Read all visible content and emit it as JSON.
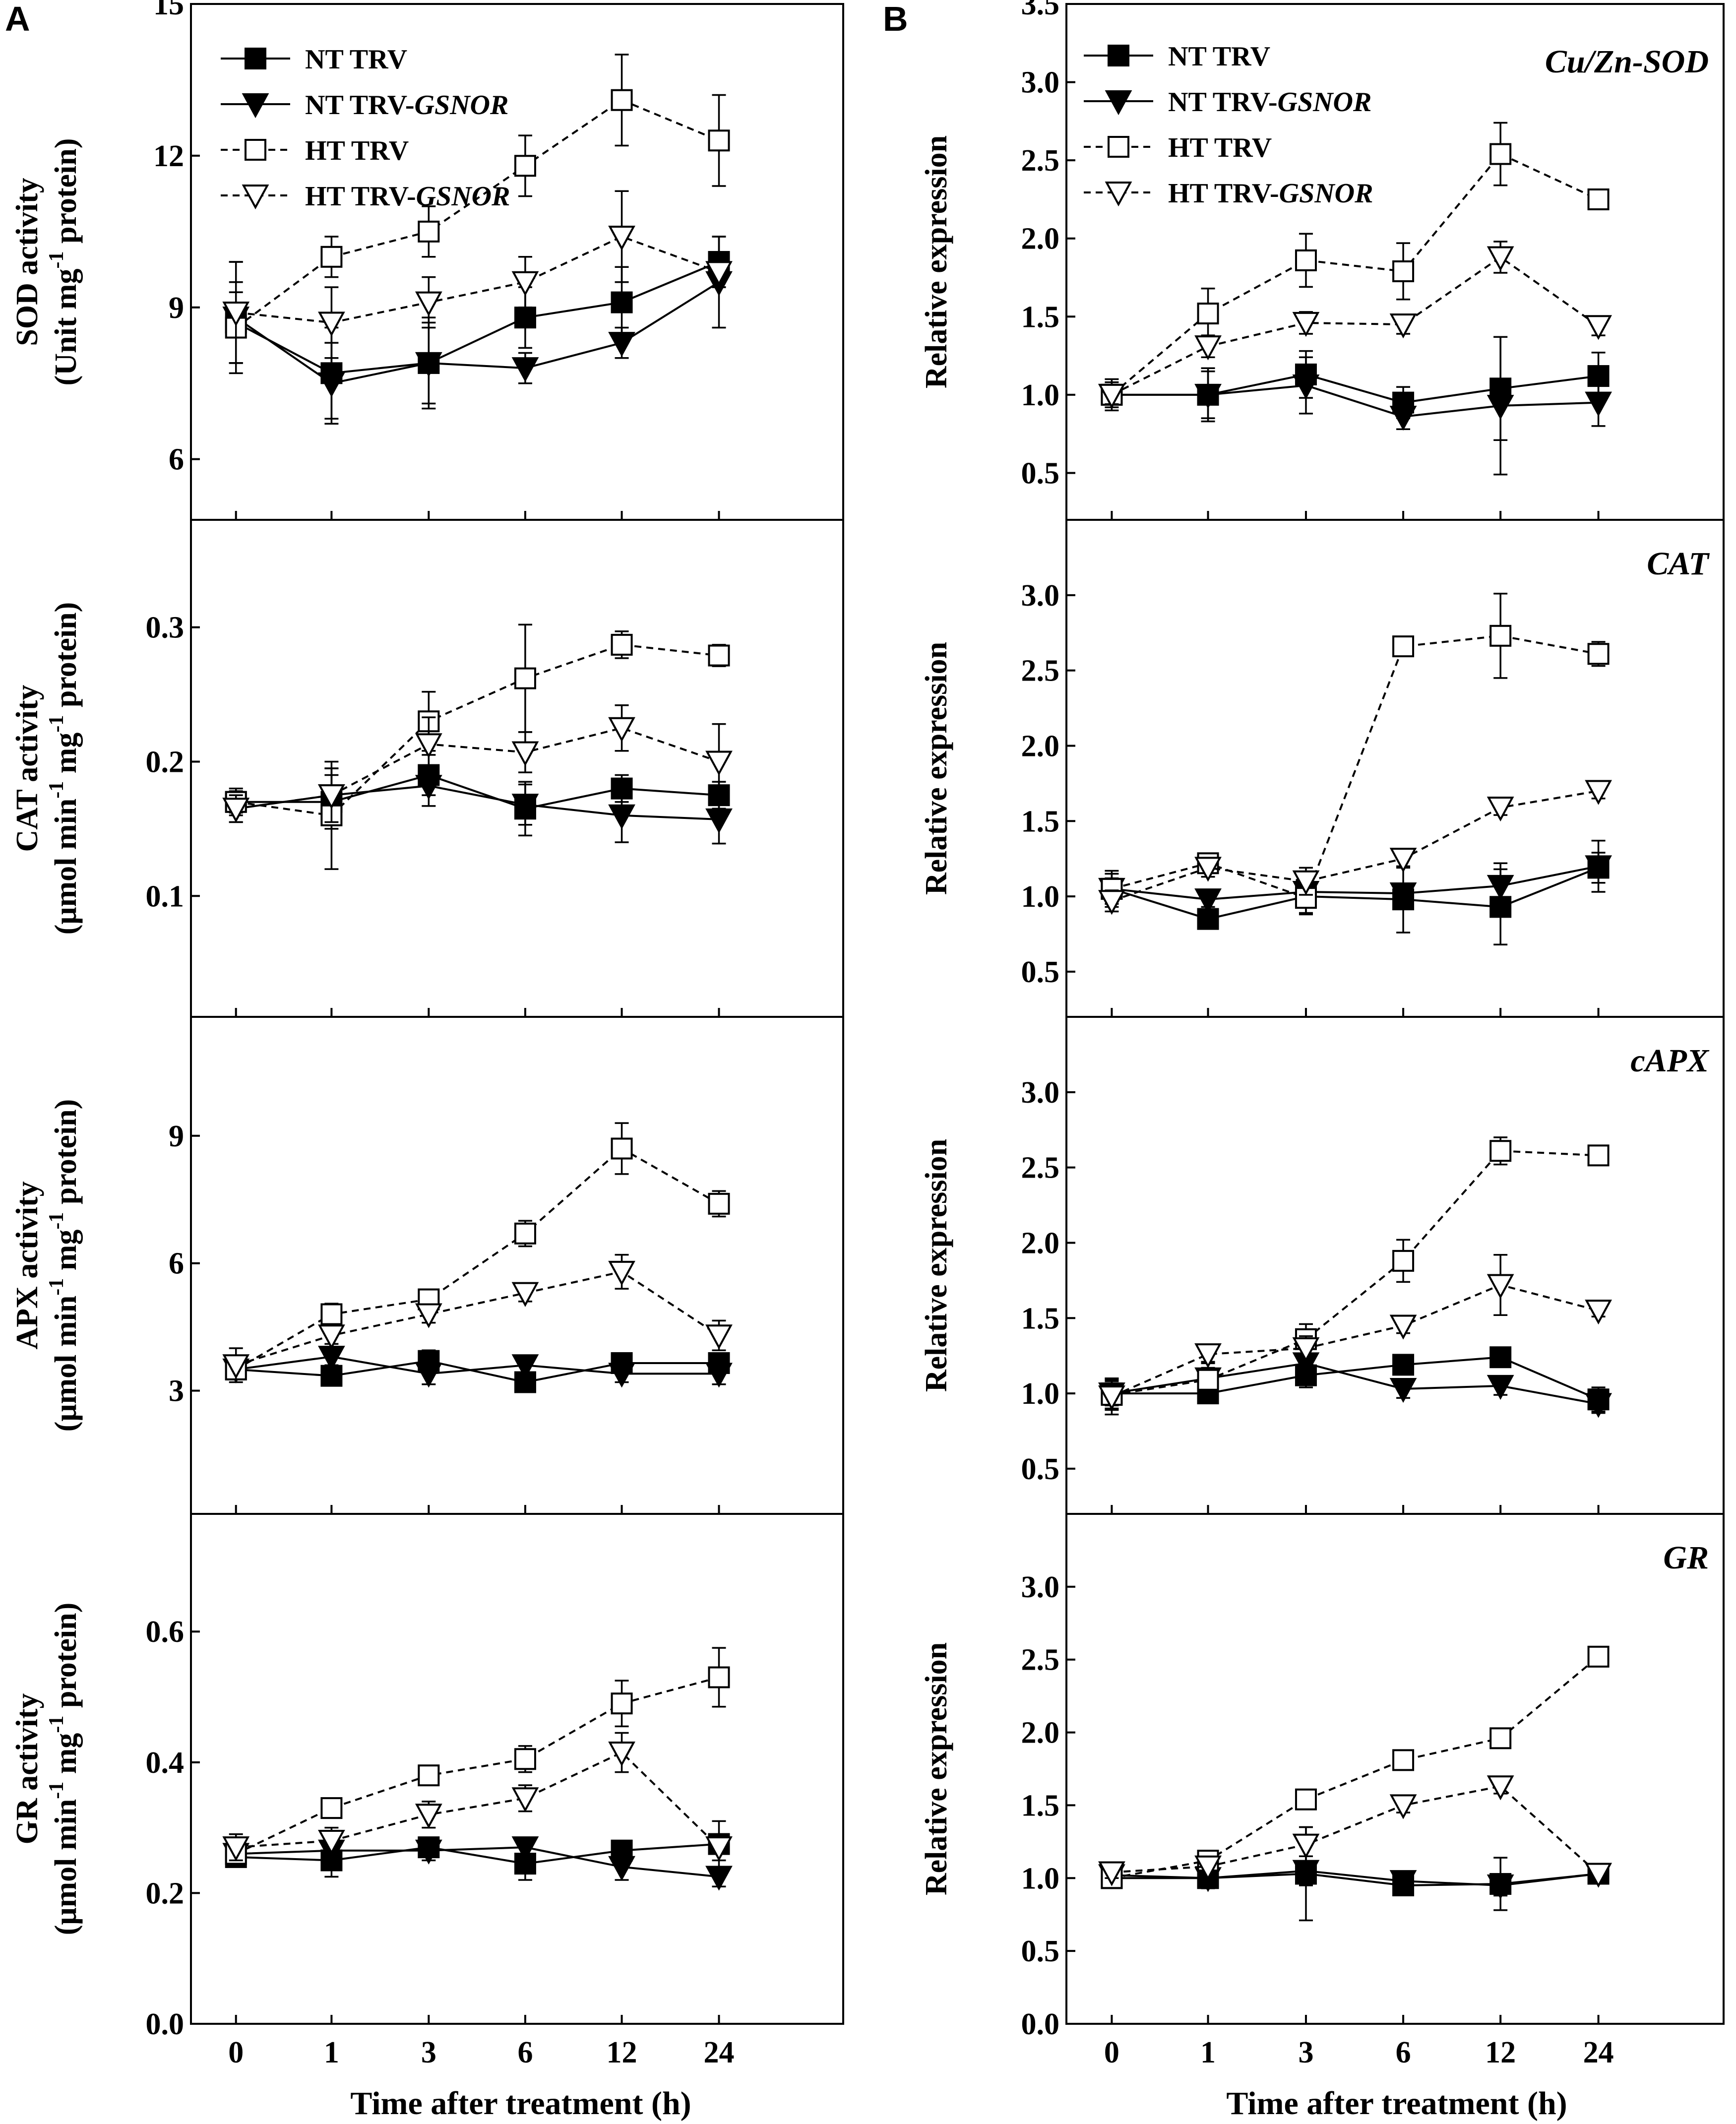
{
  "panel_labels": [
    "A",
    "B"
  ],
  "x_axis_label": "Time after treatment (h)",
  "legend_labels": {
    "nt_trv": "NT TRV",
    "nt_gsnor_prefix": "NT TRV-",
    "nt_gsnor_gene": "GSNOR",
    "ht_trv": "HT TRV",
    "ht_gsnor_prefix": "HT TRV-",
    "ht_gsnor_gene": "GSNOR"
  },
  "series_style": {
    "NT TRV": {
      "marker": "filled-square",
      "line": "solid"
    },
    "NT TRV-GSNOR": {
      "marker": "filled-triangle-down",
      "line": "solid"
    },
    "HT TRV": {
      "marker": "open-square",
      "line": "dashed"
    },
    "HT TRV-GSNOR": {
      "marker": "open-triangle-down",
      "line": "dashed"
    }
  },
  "chart_data": [
    {
      "id": "A1",
      "type": "line",
      "ylabel1_pre": "SOD activity",
      "ylabel2_pre": "(Unit mg",
      "ylabel2_sup": "-1",
      "ylabel2_post": " protein)",
      "ylim": [
        4.8,
        15
      ],
      "yticks": [
        6,
        9,
        12,
        15
      ],
      "categories": [
        "0",
        "1",
        "3",
        "6",
        "12",
        "24"
      ],
      "series": [
        {
          "name": "NT TRV",
          "values": [
            8.7,
            7.7,
            7.9,
            8.8,
            9.1,
            9.9
          ],
          "errors": [
            0.8,
            0.9,
            0.9,
            0.6,
            0.7,
            0.5
          ]
        },
        {
          "name": "NT TRV-GSNOR",
          "values": [
            8.8,
            7.5,
            7.9,
            7.8,
            8.3,
            9.5
          ],
          "errors": [
            1.1,
            0.8,
            0.8,
            0.3,
            0.3,
            0.9
          ]
        },
        {
          "name": "HT TRV",
          "values": [
            8.6,
            10.0,
            10.5,
            11.8,
            13.1,
            12.3
          ],
          "errors": [
            0.7,
            0.4,
            0.5,
            0.6,
            0.9,
            0.9
          ]
        },
        {
          "name": "HT TRV-GSNOR",
          "values": [
            8.9,
            8.7,
            9.1,
            9.5,
            10.4,
            9.7
          ],
          "errors": [
            1.0,
            0.7,
            0.5,
            0.5,
            0.9,
            0.3
          ]
        }
      ]
    },
    {
      "id": "A2",
      "type": "line",
      "ylabel1_pre": "CAT activity",
      "ylabel2_pre": "(μmol min",
      "ylabel2_sup": "-1",
      "ylabel2_mid": " mg",
      "ylabel2_sup2": "-1",
      "ylabel2_post": " protein)",
      "ylim": [
        0.01,
        0.38
      ],
      "yticks": [
        0.1,
        0.2,
        0.3
      ],
      "categories": [
        "0",
        "1",
        "3",
        "6",
        "12",
        "24"
      ],
      "series": [
        {
          "name": "NT TRV",
          "values": [
            0.17,
            0.17,
            0.19,
            0.165,
            0.18,
            0.175
          ],
          "errors": [
            0.01,
            0.02,
            0.015,
            0.02,
            0.01,
            0.01
          ]
        },
        {
          "name": "NT TRV-GSNOR",
          "values": [
            0.165,
            0.175,
            0.182,
            0.168,
            0.16,
            0.157
          ],
          "errors": [
            0.01,
            0.02,
            0.015,
            0.015,
            0.02,
            0.018
          ]
        },
        {
          "name": "HT TRV",
          "values": [
            0.17,
            0.16,
            0.23,
            0.262,
            0.287,
            0.279
          ],
          "errors": [
            0.008,
            0.04,
            0.022,
            0.04,
            0.01,
            0.008
          ]
        },
        {
          "name": "HT TRV-GSNOR",
          "values": [
            0.165,
            0.175,
            0.213,
            0.207,
            0.225,
            0.2
          ],
          "errors": [
            0.01,
            0.02,
            0.02,
            0.015,
            0.017,
            0.028
          ]
        }
      ]
    },
    {
      "id": "A3",
      "type": "line",
      "ylabel1_pre": "APX activity",
      "ylabel2_pre": "(μmol min",
      "ylabel2_sup": "-1",
      "ylabel2_mid": " mg",
      "ylabel2_sup2": "-1",
      "ylabel2_post": " protein)",
      "ylim": [
        0.1,
        11.8
      ],
      "yticks": [
        3,
        6,
        9
      ],
      "categories": [
        "0",
        "1",
        "3",
        "6",
        "12",
        "24"
      ],
      "series": [
        {
          "name": "NT TRV",
          "values": [
            3.5,
            3.35,
            3.7,
            3.2,
            3.65,
            3.65
          ],
          "errors": [
            0.2,
            0.15,
            0.25,
            0.2,
            0.2,
            0.2
          ]
        },
        {
          "name": "NT TRV-GSNOR",
          "values": [
            3.5,
            3.8,
            3.4,
            3.6,
            3.4,
            3.4
          ],
          "errors": [
            0.2,
            0.2,
            0.25,
            0.2,
            0.2,
            0.25
          ]
        },
        {
          "name": "HT TRV",
          "values": [
            3.5,
            4.8,
            5.15,
            6.7,
            8.7,
            7.4
          ],
          "errors": [
            0.2,
            0.25,
            0.2,
            0.3,
            0.6,
            0.3
          ]
        },
        {
          "name": "HT TRV-GSNOR",
          "values": [
            3.6,
            4.3,
            4.8,
            5.3,
            5.8,
            4.3
          ],
          "errors": [
            0.4,
            0.2,
            0.2,
            0.2,
            0.4,
            0.35
          ]
        }
      ]
    },
    {
      "id": "A4",
      "type": "line",
      "ylabel1_pre": "GR activity",
      "ylabel2_pre": "(μmol min",
      "ylabel2_sup": "-1",
      "ylabel2_mid": " mg",
      "ylabel2_sup2": "-1",
      "ylabel2_post": " protein)",
      "ylim": [
        0,
        0.78
      ],
      "yticks": [
        0.0,
        0.2,
        0.4,
        0.6
      ],
      "categories": [
        "0",
        "1",
        "3",
        "6",
        "12",
        "24"
      ],
      "series": [
        {
          "name": "NT TRV",
          "values": [
            0.255,
            0.25,
            0.27,
            0.245,
            0.265,
            0.275
          ],
          "errors": [
            0.015,
            0.025,
            0.015,
            0.025,
            0.015,
            0.035
          ]
        },
        {
          "name": "NT TRV-GSNOR",
          "values": [
            0.26,
            0.265,
            0.265,
            0.27,
            0.24,
            0.225
          ],
          "errors": [
            0.015,
            0.015,
            0.015,
            0.015,
            0.02,
            0.015
          ]
        },
        {
          "name": "HT TRV",
          "values": [
            0.26,
            0.33,
            0.38,
            0.405,
            0.49,
            0.53
          ],
          "errors": [
            0.02,
            0.01,
            0.015,
            0.02,
            0.035,
            0.045
          ]
        },
        {
          "name": "HT TRV-GSNOR",
          "values": [
            0.27,
            0.28,
            0.32,
            0.345,
            0.415,
            0.27
          ],
          "errors": [
            0.02,
            0.02,
            0.02,
            0.02,
            0.03,
            0.02
          ]
        }
      ]
    },
    {
      "id": "B1",
      "type": "line",
      "gene": "Cu/Zn-SOD",
      "ylabel1_pre": "Relative expression",
      "ylim": [
        0.2,
        3.5
      ],
      "yticks": [
        0.5,
        1.0,
        1.5,
        2.0,
        2.5,
        3.0,
        3.5
      ],
      "categories": [
        "0",
        "1",
        "3",
        "6",
        "12",
        "24"
      ],
      "series": [
        {
          "name": "NT TRV",
          "values": [
            1.0,
            1.0,
            1.13,
            0.95,
            1.04,
            1.12
          ],
          "errors": [
            0.1,
            0.17,
            0.15,
            0.1,
            0.33,
            0.15
          ]
        },
        {
          "name": "NT TRV-GSNOR",
          "values": [
            1.0,
            1.0,
            1.06,
            0.86,
            0.93,
            0.95
          ],
          "errors": [
            0.08,
            0.15,
            0.18,
            0.08,
            0.44,
            0.15
          ]
        },
        {
          "name": "HT TRV",
          "values": [
            1.0,
            1.52,
            1.86,
            1.79,
            2.54,
            2.25
          ],
          "errors": [
            0.06,
            0.16,
            0.17,
            0.18,
            0.2,
            0.04
          ]
        },
        {
          "name": "HT TRV-GSNOR",
          "values": [
            1.0,
            1.31,
            1.46,
            1.45,
            1.88,
            1.44
          ],
          "errors": [
            0.06,
            0.07,
            0.07,
            0.06,
            0.1,
            0.06
          ]
        }
      ]
    },
    {
      "id": "B2",
      "type": "line",
      "gene": "CAT",
      "ylabel1_pre": "Relative expression",
      "ylim": [
        0.2,
        3.5
      ],
      "yticks": [
        0.5,
        1.0,
        1.5,
        2.0,
        2.5,
        3.0
      ],
      "categories": [
        "0",
        "1",
        "3",
        "6",
        "12",
        "24"
      ],
      "series": [
        {
          "name": "NT TRV",
          "values": [
            1.05,
            0.85,
            1.0,
            0.98,
            0.93,
            1.19
          ],
          "errors": [
            0.12,
            0.05,
            0.12,
            0.22,
            0.25,
            0.1
          ]
        },
        {
          "name": "NT TRV-GSNOR",
          "values": [
            1.05,
            0.98,
            1.03,
            1.02,
            1.07,
            1.2
          ],
          "errors": [
            0.1,
            0.05,
            0.1,
            0.05,
            0.15,
            0.17
          ]
        },
        {
          "name": "HT TRV",
          "values": [
            1.05,
            1.22,
            0.99,
            2.66,
            2.73,
            2.61
          ],
          "errors": [
            0.07,
            0.05,
            0.1,
            0.06,
            0.28,
            0.08
          ]
        },
        {
          "name": "HT TRV-GSNOR",
          "values": [
            0.97,
            1.19,
            1.1,
            1.25,
            1.59,
            1.7
          ],
          "errors": [
            0.07,
            0.06,
            0.09,
            0.06,
            0.05,
            0.05
          ]
        }
      ]
    },
    {
      "id": "B3",
      "type": "line",
      "gene": "cAPX",
      "ylabel1_pre": "Relative expression",
      "ylim": [
        0.2,
        3.5
      ],
      "yticks": [
        0.5,
        1.0,
        1.5,
        2.0,
        2.5,
        3.0
      ],
      "categories": [
        "0",
        "1",
        "3",
        "6",
        "12",
        "24"
      ],
      "series": [
        {
          "name": "NT TRV",
          "values": [
            1.0,
            1.0,
            1.12,
            1.19,
            1.24,
            0.96
          ],
          "errors": [
            0.1,
            0.05,
            0.08,
            0.05,
            0.04,
            0.08
          ]
        },
        {
          "name": "NT TRV-GSNOR",
          "values": [
            1.0,
            1.1,
            1.2,
            1.03,
            1.05,
            0.93
          ],
          "errors": [
            0.08,
            0.1,
            0.1,
            0.06,
            0.06,
            0.06
          ]
        },
        {
          "name": "HT TRV",
          "values": [
            0.99,
            1.09,
            1.36,
            1.88,
            2.61,
            2.58
          ],
          "errors": [
            0.1,
            0.08,
            0.1,
            0.14,
            0.09,
            0.05
          ]
        },
        {
          "name": "HT TRV-GSNOR",
          "values": [
            0.98,
            1.26,
            1.3,
            1.45,
            1.72,
            1.55
          ],
          "errors": [
            0.12,
            0.05,
            0.08,
            0.05,
            0.2,
            0.04
          ]
        }
      ]
    },
    {
      "id": "B4",
      "type": "line",
      "gene": "GR",
      "ylabel1_pre": "Relative expression",
      "ylim": [
        0,
        3.5
      ],
      "yticks": [
        0.0,
        0.5,
        1.0,
        1.5,
        2.0,
        2.5,
        3.0
      ],
      "categories": [
        "0",
        "1",
        "3",
        "6",
        "12",
        "24"
      ],
      "series": [
        {
          "name": "NT TRV",
          "values": [
            1.0,
            1.0,
            1.03,
            0.95,
            0.96,
            1.03
          ],
          "errors": [
            0.05,
            0.07,
            0.32,
            0.05,
            0.18,
            0.03
          ]
        },
        {
          "name": "NT TRV-GSNOR",
          "values": [
            1.02,
            1.0,
            1.05,
            0.98,
            0.95,
            1.03
          ],
          "errors": [
            0.05,
            0.06,
            0.1,
            0.05,
            0.07,
            0.03
          ]
        },
        {
          "name": "HT TRV",
          "values": [
            1.0,
            1.12,
            1.54,
            1.81,
            1.96,
            2.52
          ],
          "errors": [
            0.04,
            0.04,
            0.05,
            0.04,
            0.04,
            0.06
          ]
        },
        {
          "name": "HT TRV-GSNOR",
          "values": [
            1.04,
            1.08,
            1.23,
            1.5,
            1.63,
            1.03
          ],
          "errors": [
            0.04,
            0.06,
            0.12,
            0.05,
            0.05,
            0.04
          ]
        }
      ]
    }
  ]
}
